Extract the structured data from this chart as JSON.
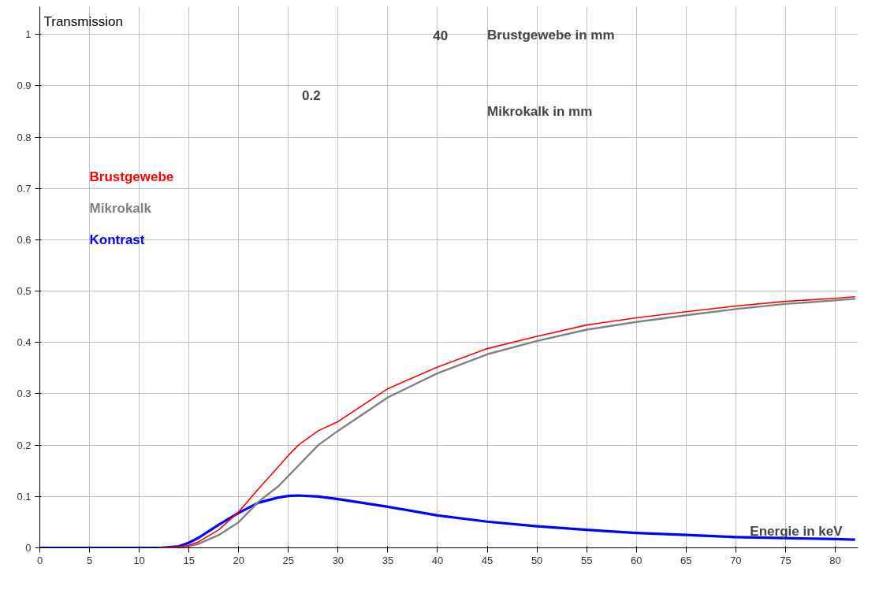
{
  "chart_data": {
    "type": "line",
    "xlabel": "Energie in keV",
    "ylabel": "Transmission",
    "x": [
      0,
      10,
      12,
      14,
      15,
      16,
      18,
      20,
      22,
      24,
      25,
      26,
      28,
      30,
      35,
      40,
      45,
      50,
      55,
      60,
      65,
      70,
      75,
      80,
      82
    ],
    "series": [
      {
        "name": "Brustgewebe",
        "color": "#ff0000",
        "x": [
          12,
          14,
          15,
          16,
          18,
          20,
          22,
          24,
          25,
          26,
          28,
          30,
          35,
          40,
          45,
          50,
          55,
          60,
          65,
          70,
          75,
          80,
          82
        ],
        "values": [
          0,
          0.002,
          0.005,
          0.012,
          0.035,
          0.07,
          0.115,
          0.158,
          0.18,
          0.2,
          0.228,
          0.246,
          0.31,
          0.352,
          0.388,
          0.412,
          0.434,
          0.448,
          0.46,
          0.471,
          0.48,
          0.486,
          0.489
        ]
      },
      {
        "name": "Mikrokalk",
        "color": "#808080",
        "x": [
          12,
          14,
          15,
          16,
          18,
          20,
          22,
          24,
          25,
          26,
          28,
          30,
          35,
          40,
          45,
          50,
          55,
          60,
          65,
          70,
          75,
          80,
          82
        ],
        "values": [
          0,
          0.001,
          0.003,
          0.008,
          0.025,
          0.05,
          0.09,
          0.12,
          0.14,
          0.16,
          0.2,
          0.228,
          0.293,
          0.34,
          0.377,
          0.403,
          0.425,
          0.44,
          0.453,
          0.465,
          0.475,
          0.482,
          0.485
        ]
      },
      {
        "name": "Kontrast",
        "color": "#0000ff",
        "values": [
          0,
          0,
          0,
          0.003,
          0.01,
          0.02,
          0.045,
          0.068,
          0.088,
          0.098,
          0.101,
          0.102,
          0.1,
          0.095,
          0.08,
          0.063,
          0.051,
          0.042,
          0.035,
          0.029,
          0.025,
          0.021,
          0.019,
          0.017,
          0.016
        ]
      }
    ],
    "xlim": [
      0,
      82.3
    ],
    "ylim": [
      0,
      1.054
    ],
    "xticks": [
      0,
      5,
      10,
      15,
      20,
      25,
      30,
      35,
      40,
      45,
      50,
      55,
      60,
      65,
      70,
      75,
      80
    ],
    "yticks": [
      0,
      0.1,
      0.2,
      0.3,
      0.4,
      0.5,
      0.6,
      0.7,
      0.8,
      0.9,
      1
    ],
    "grid": true,
    "legend": "left",
    "marker": "none",
    "line_style": "solid",
    "annotations": [
      "40",
      "Brustgewebe in mm",
      "0.2",
      "Mikrokalk in mm"
    ]
  }
}
